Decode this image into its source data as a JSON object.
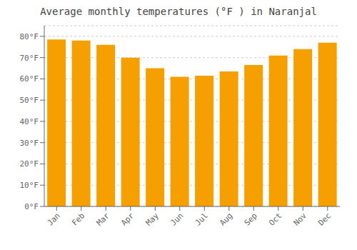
{
  "chart_data": {
    "type": "bar",
    "title": "Average monthly temperatures (°F ) in Naranjal",
    "categories": [
      "Jan",
      "Feb",
      "Mar",
      "Apr",
      "May",
      "Jun",
      "Jul",
      "Aug",
      "Sep",
      "Oct",
      "Nov",
      "Dec"
    ],
    "values": [
      78.5,
      78.0,
      76.0,
      70.0,
      65.0,
      61.0,
      61.5,
      63.5,
      66.5,
      71.0,
      74.0,
      77.0
    ],
    "color": "#F5A000",
    "ylim": [
      0,
      85
    ],
    "yticks": [
      {
        "value": 0,
        "label": "0°F"
      },
      {
        "value": 10,
        "label": "10°F"
      },
      {
        "value": 20,
        "label": "20°F"
      },
      {
        "value": 30,
        "label": "30°F"
      },
      {
        "value": 40,
        "label": "40°F"
      },
      {
        "value": 50,
        "label": "50°F"
      },
      {
        "value": 60,
        "label": "60°F"
      },
      {
        "value": 70,
        "label": "70°F"
      },
      {
        "value": 80,
        "label": "80°F"
      }
    ],
    "grid": true
  }
}
